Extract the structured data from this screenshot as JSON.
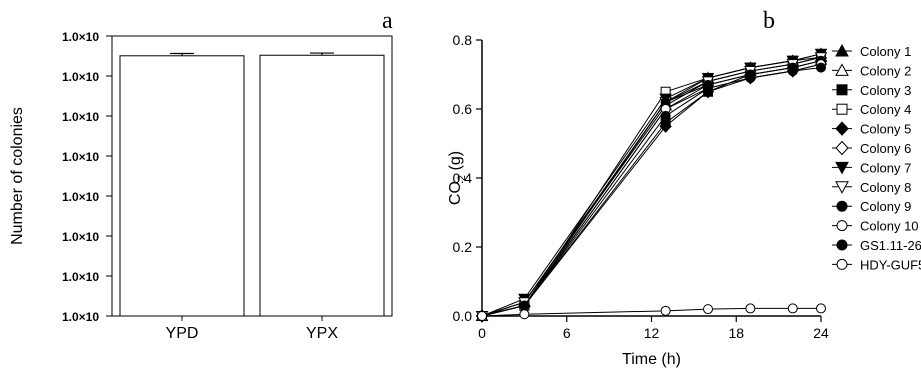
{
  "figure": {
    "panel_a_letter": "a",
    "panel_b_letter": "b"
  },
  "chart_data": [
    {
      "type": "bar",
      "panel": "a",
      "categories": [
        "YPD",
        "YPX"
      ],
      "values": [
        3200000,
        3300000
      ],
      "errors": [
        450000,
        450000
      ],
      "ylabel": "Number of colonies",
      "xlabel": "",
      "yscale": "log",
      "ylim": [
        1,
        10000000
      ],
      "ytick_labels": [
        {
          "base": "1.0×10",
          "exp": "00"
        },
        {
          "base": "1.0×10",
          "exp": "01"
        },
        {
          "base": "1.0×10",
          "exp": "02"
        },
        {
          "base": "1.0×10",
          "exp": "03"
        },
        {
          "base": "1.0×10",
          "exp": "04"
        },
        {
          "base": "1.0×10",
          "exp": "05"
        },
        {
          "base": "1.0×10",
          "exp": "06"
        },
        {
          "base": "1.0×10",
          "exp": "07"
        }
      ],
      "grid": false
    },
    {
      "type": "line",
      "panel": "b",
      "x": [
        0,
        3,
        13,
        16,
        19,
        22,
        24
      ],
      "xlabel": "Time (h)",
      "ylabel_main": "CO",
      "ylabel_sub": "2",
      "ylabel_unit": " (g)",
      "xlim": [
        0,
        24
      ],
      "ylim": [
        0,
        0.8
      ],
      "xticks": [
        "0",
        "6",
        "12",
        "18",
        "24"
      ],
      "yticks": [
        "0.0",
        "0.2",
        "0.4",
        "0.6",
        "0.8"
      ],
      "legend_position": "right",
      "grid": false,
      "series": [
        {
          "name": "Colony 1",
          "marker": "triangle-up",
          "fill": "filled",
          "values": [
            0.0,
            0.04,
            0.62,
            0.69,
            0.72,
            0.74,
            0.76
          ]
        },
        {
          "name": "Colony 2",
          "marker": "triangle-up",
          "fill": "open",
          "values": [
            0.0,
            0.04,
            0.61,
            0.68,
            0.71,
            0.73,
            0.75
          ]
        },
        {
          "name": "Colony 3",
          "marker": "square",
          "fill": "filled",
          "values": [
            0.0,
            0.03,
            0.56,
            0.65,
            0.7,
            0.72,
            0.74
          ]
        },
        {
          "name": "Colony 4",
          "marker": "square",
          "fill": "open",
          "values": [
            0.0,
            0.03,
            0.65,
            0.69,
            0.72,
            0.74,
            0.75
          ]
        },
        {
          "name": "Colony 5",
          "marker": "diamond",
          "fill": "filled",
          "values": [
            0.0,
            0.03,
            0.55,
            0.65,
            0.69,
            0.71,
            0.73
          ]
        },
        {
          "name": "Colony 6",
          "marker": "diamond",
          "fill": "open",
          "values": [
            0.0,
            0.03,
            0.6,
            0.67,
            0.7,
            0.72,
            0.74
          ]
        },
        {
          "name": "Colony 7",
          "marker": "triangle-down",
          "fill": "filled",
          "values": [
            0.0,
            0.05,
            0.63,
            0.69,
            0.72,
            0.74,
            0.76
          ]
        },
        {
          "name": "Colony 8",
          "marker": "triangle-down",
          "fill": "open",
          "values": [
            0.0,
            0.04,
            0.62,
            0.68,
            0.71,
            0.73,
            0.75
          ]
        },
        {
          "name": "Colony 9",
          "marker": "circle",
          "fill": "filled",
          "values": [
            0.0,
            0.03,
            0.62,
            0.67,
            0.7,
            0.72,
            0.74
          ]
        },
        {
          "name": "Colony 10",
          "marker": "circle",
          "fill": "open",
          "values": [
            0.0,
            0.03,
            0.6,
            0.66,
            0.69,
            0.71,
            0.73
          ]
        },
        {
          "name": "GS1.11-26",
          "marker": "circle",
          "fill": "filled",
          "values": [
            0.0,
            0.03,
            0.58,
            0.66,
            0.69,
            0.71,
            0.72
          ]
        },
        {
          "name": "HDY-GUF5",
          "marker": "circle",
          "fill": "open",
          "values": [
            0.0,
            0.005,
            0.015,
            0.02,
            0.022,
            0.022,
            0.022
          ]
        }
      ]
    }
  ]
}
